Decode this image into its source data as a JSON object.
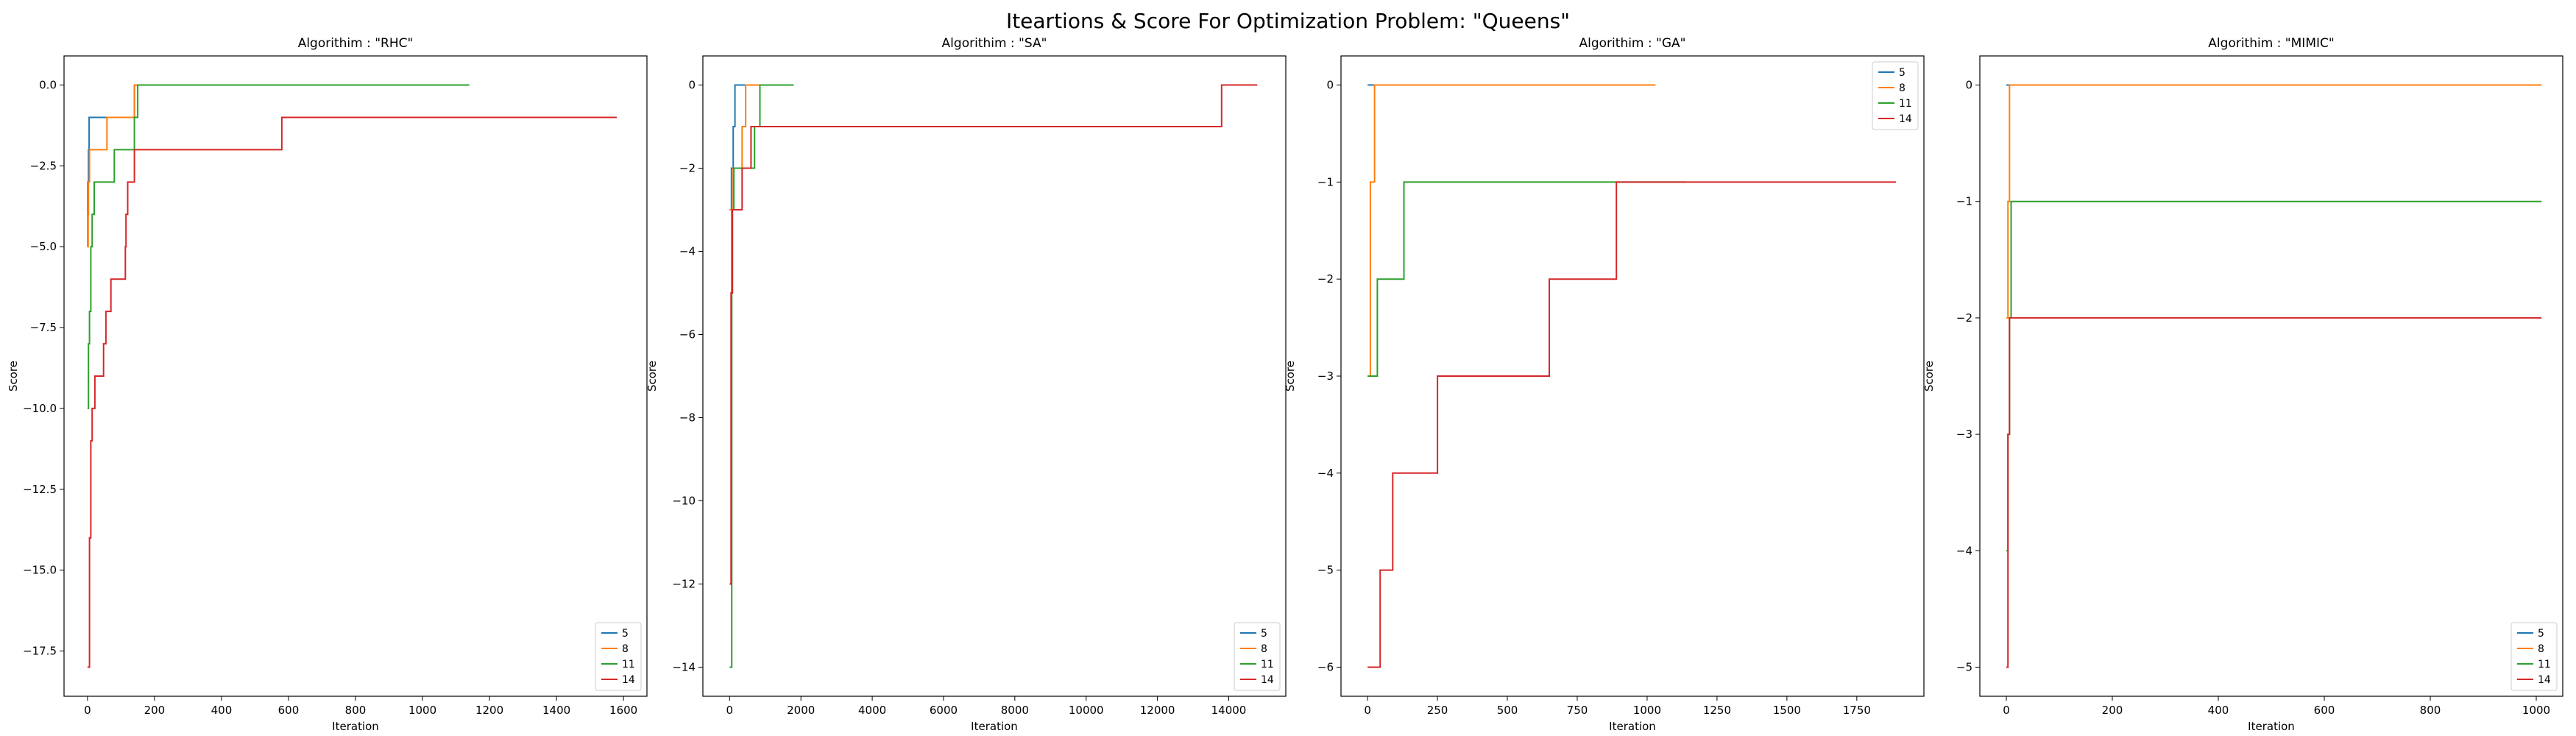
{
  "figure": {
    "title": "Iteartions & Score For Optimization Problem: \"Queens\""
  },
  "colors": {
    "5": "#1f77b4",
    "8": "#ff7f0e",
    "11": "#2ca02c",
    "14": "#d62728"
  },
  "chart_data": [
    {
      "type": "line",
      "title": "Algorithim : \"RHC\"",
      "xlabel": "Iteration",
      "ylabel": "Score",
      "xlim": [
        -70,
        1670
      ],
      "ylim": [
        -18.9,
        0.9
      ],
      "xticks": [
        0,
        200,
        400,
        600,
        800,
        1000,
        1200,
        1400,
        1600
      ],
      "xtick_labels": [
        "0",
        "200",
        "400",
        "600",
        "800",
        "1000",
        "1200",
        "1400",
        "1600"
      ],
      "yticks": [
        0.0,
        -2.5,
        -5.0,
        -7.5,
        -10.0,
        -12.5,
        -15.0,
        -17.5
      ],
      "ytick_labels": [
        "0.0",
        "−2.5",
        "−5.0",
        "−7.5",
        "−10.0",
        "−12.5",
        "−15.0",
        "−17.5"
      ],
      "legend": "lower-right",
      "grid": false,
      "series": [
        {
          "name": "5",
          "step_points": [
            [
              0,
              -5
            ],
            [
              1,
              -3
            ],
            [
              3,
              -2
            ],
            [
              5,
              -1
            ],
            [
              120,
              -1
            ],
            [
              140,
              0
            ],
            [
              150,
              0
            ]
          ]
        },
        {
          "name": "8",
          "step_points": [
            [
              0,
              -5
            ],
            [
              2,
              -4
            ],
            [
              3,
              -3
            ],
            [
              6,
              -2
            ],
            [
              58,
              -1
            ],
            [
              130,
              -1
            ],
            [
              140,
              0
            ],
            [
              1000,
              0
            ]
          ]
        },
        {
          "name": "11",
          "step_points": [
            [
              0,
              -10
            ],
            [
              3,
              -8
            ],
            [
              6,
              -7
            ],
            [
              10,
              -5
            ],
            [
              14,
              -4
            ],
            [
              20,
              -3
            ],
            [
              80,
              -2
            ],
            [
              140,
              -1
            ],
            [
              150,
              0
            ],
            [
              1140,
              0
            ]
          ]
        },
        {
          "name": "14",
          "step_points": [
            [
              0,
              -18
            ],
            [
              6,
              -14
            ],
            [
              10,
              -11
            ],
            [
              14,
              -10
            ],
            [
              22,
              -9
            ],
            [
              48,
              -8
            ],
            [
              55,
              -7
            ],
            [
              70,
              -6
            ],
            [
              113,
              -5
            ],
            [
              115,
              -4
            ],
            [
              120,
              -3
            ],
            [
              140,
              -2
            ],
            [
              580,
              -1
            ],
            [
              1580,
              -1
            ]
          ]
        }
      ]
    },
    {
      "type": "line",
      "title": "Algorithim : \"SA\"",
      "xlabel": "Iteration",
      "ylabel": "Score",
      "xlim": [
        -750,
        15600
      ],
      "ylim": [
        -14.7,
        0.7
      ],
      "xticks": [
        0,
        2000,
        4000,
        6000,
        8000,
        10000,
        12000,
        14000
      ],
      "xtick_labels": [
        "0",
        "2000",
        "4000",
        "6000",
        "8000",
        "10000",
        "12000",
        "14000"
      ],
      "yticks": [
        0,
        -2,
        -4,
        -6,
        -8,
        -10,
        -12,
        -14
      ],
      "ytick_labels": [
        "0",
        "−2",
        "−4",
        "−6",
        "−8",
        "−10",
        "−12",
        "−14"
      ],
      "legend": "lower-right",
      "grid": false,
      "series": [
        {
          "name": "5",
          "step_points": [
            [
              0,
              -3
            ],
            [
              50,
              -2
            ],
            [
              100,
              -1
            ],
            [
              150,
              0
            ],
            [
              600,
              0
            ]
          ]
        },
        {
          "name": "8",
          "step_points": [
            [
              0,
              -3
            ],
            [
              100,
              -2
            ],
            [
              350,
              -1
            ],
            [
              450,
              0
            ],
            [
              1000,
              0
            ]
          ]
        },
        {
          "name": "11",
          "step_points": [
            [
              0,
              -14
            ],
            [
              60,
              -3
            ],
            [
              120,
              -2
            ],
            [
              700,
              -1
            ],
            [
              850,
              0
            ],
            [
              1800,
              0
            ]
          ]
        },
        {
          "name": "14",
          "step_points": [
            [
              0,
              -12
            ],
            [
              40,
              -5
            ],
            [
              80,
              -3
            ],
            [
              350,
              -2
            ],
            [
              600,
              -1
            ],
            [
              13800,
              0
            ],
            [
              14800,
              0
            ]
          ]
        }
      ]
    },
    {
      "type": "line",
      "title": "Algorithim : \"GA\"",
      "xlabel": "Iteration",
      "ylabel": "Score",
      "xlim": [
        -95,
        1990
      ],
      "ylim": [
        -6.3,
        0.3
      ],
      "xticks": [
        0,
        250,
        500,
        750,
        1000,
        1250,
        1500,
        1750
      ],
      "xtick_labels": [
        "0",
        "250",
        "500",
        "750",
        "1000",
        "1250",
        "1500",
        "1750"
      ],
      "yticks": [
        0,
        -1,
        -2,
        -3,
        -4,
        -5,
        -6
      ],
      "ytick_labels": [
        "0",
        "−1",
        "−2",
        "−3",
        "−4",
        "−5",
        "−6"
      ],
      "legend": "top-right",
      "grid": false,
      "series": [
        {
          "name": "5",
          "step_points": [
            [
              0,
              0
            ],
            [
              25,
              0
            ]
          ]
        },
        {
          "name": "8",
          "step_points": [
            [
              0,
              -3
            ],
            [
              10,
              -1
            ],
            [
              25,
              0
            ],
            [
              1030,
              0
            ]
          ]
        },
        {
          "name": "11",
          "step_points": [
            [
              0,
              -3
            ],
            [
              30,
              -3
            ],
            [
              35,
              -2
            ],
            [
              80,
              -2
            ],
            [
              130,
              -1
            ],
            [
              1140,
              -1
            ]
          ]
        },
        {
          "name": "14",
          "step_points": [
            [
              0,
              -6
            ],
            [
              45,
              -5
            ],
            [
              90,
              -4
            ],
            [
              250,
              -3
            ],
            [
              650,
              -2
            ],
            [
              890,
              -1
            ],
            [
              1890,
              -1
            ]
          ]
        }
      ]
    },
    {
      "type": "line",
      "title": "Algorithim : \"MIMIC\"",
      "xlabel": "Iteration",
      "ylabel": "Score",
      "xlim": [
        -50,
        1050
      ],
      "ylim": [
        -5.25,
        0.25
      ],
      "xticks": [
        0,
        200,
        400,
        600,
        800,
        1000
      ],
      "xtick_labels": [
        "0",
        "200",
        "400",
        "600",
        "800",
        "1000"
      ],
      "yticks": [
        0,
        -1,
        -2,
        -3,
        -4,
        -5
      ],
      "ytick_labels": [
        "0",
        "−1",
        "−2",
        "−3",
        "−4",
        "−5"
      ],
      "legend": "lower-right",
      "grid": false,
      "series": [
        {
          "name": "5",
          "step_points": [
            [
              0,
              0
            ],
            [
              1010,
              0
            ]
          ]
        },
        {
          "name": "8",
          "step_points": [
            [
              0,
              -2
            ],
            [
              3,
              -1
            ],
            [
              6,
              0
            ],
            [
              1010,
              0
            ]
          ]
        },
        {
          "name": "11",
          "step_points": [
            [
              0,
              -4
            ],
            [
              3,
              -3
            ],
            [
              6,
              -2
            ],
            [
              9,
              -1
            ],
            [
              20,
              -1
            ],
            [
              1010,
              -1
            ]
          ]
        },
        {
          "name": "14",
          "step_points": [
            [
              0,
              -5
            ],
            [
              3,
              -3
            ],
            [
              6,
              -2
            ],
            [
              12,
              -2
            ],
            [
              1010,
              -2
            ]
          ]
        }
      ]
    }
  ]
}
